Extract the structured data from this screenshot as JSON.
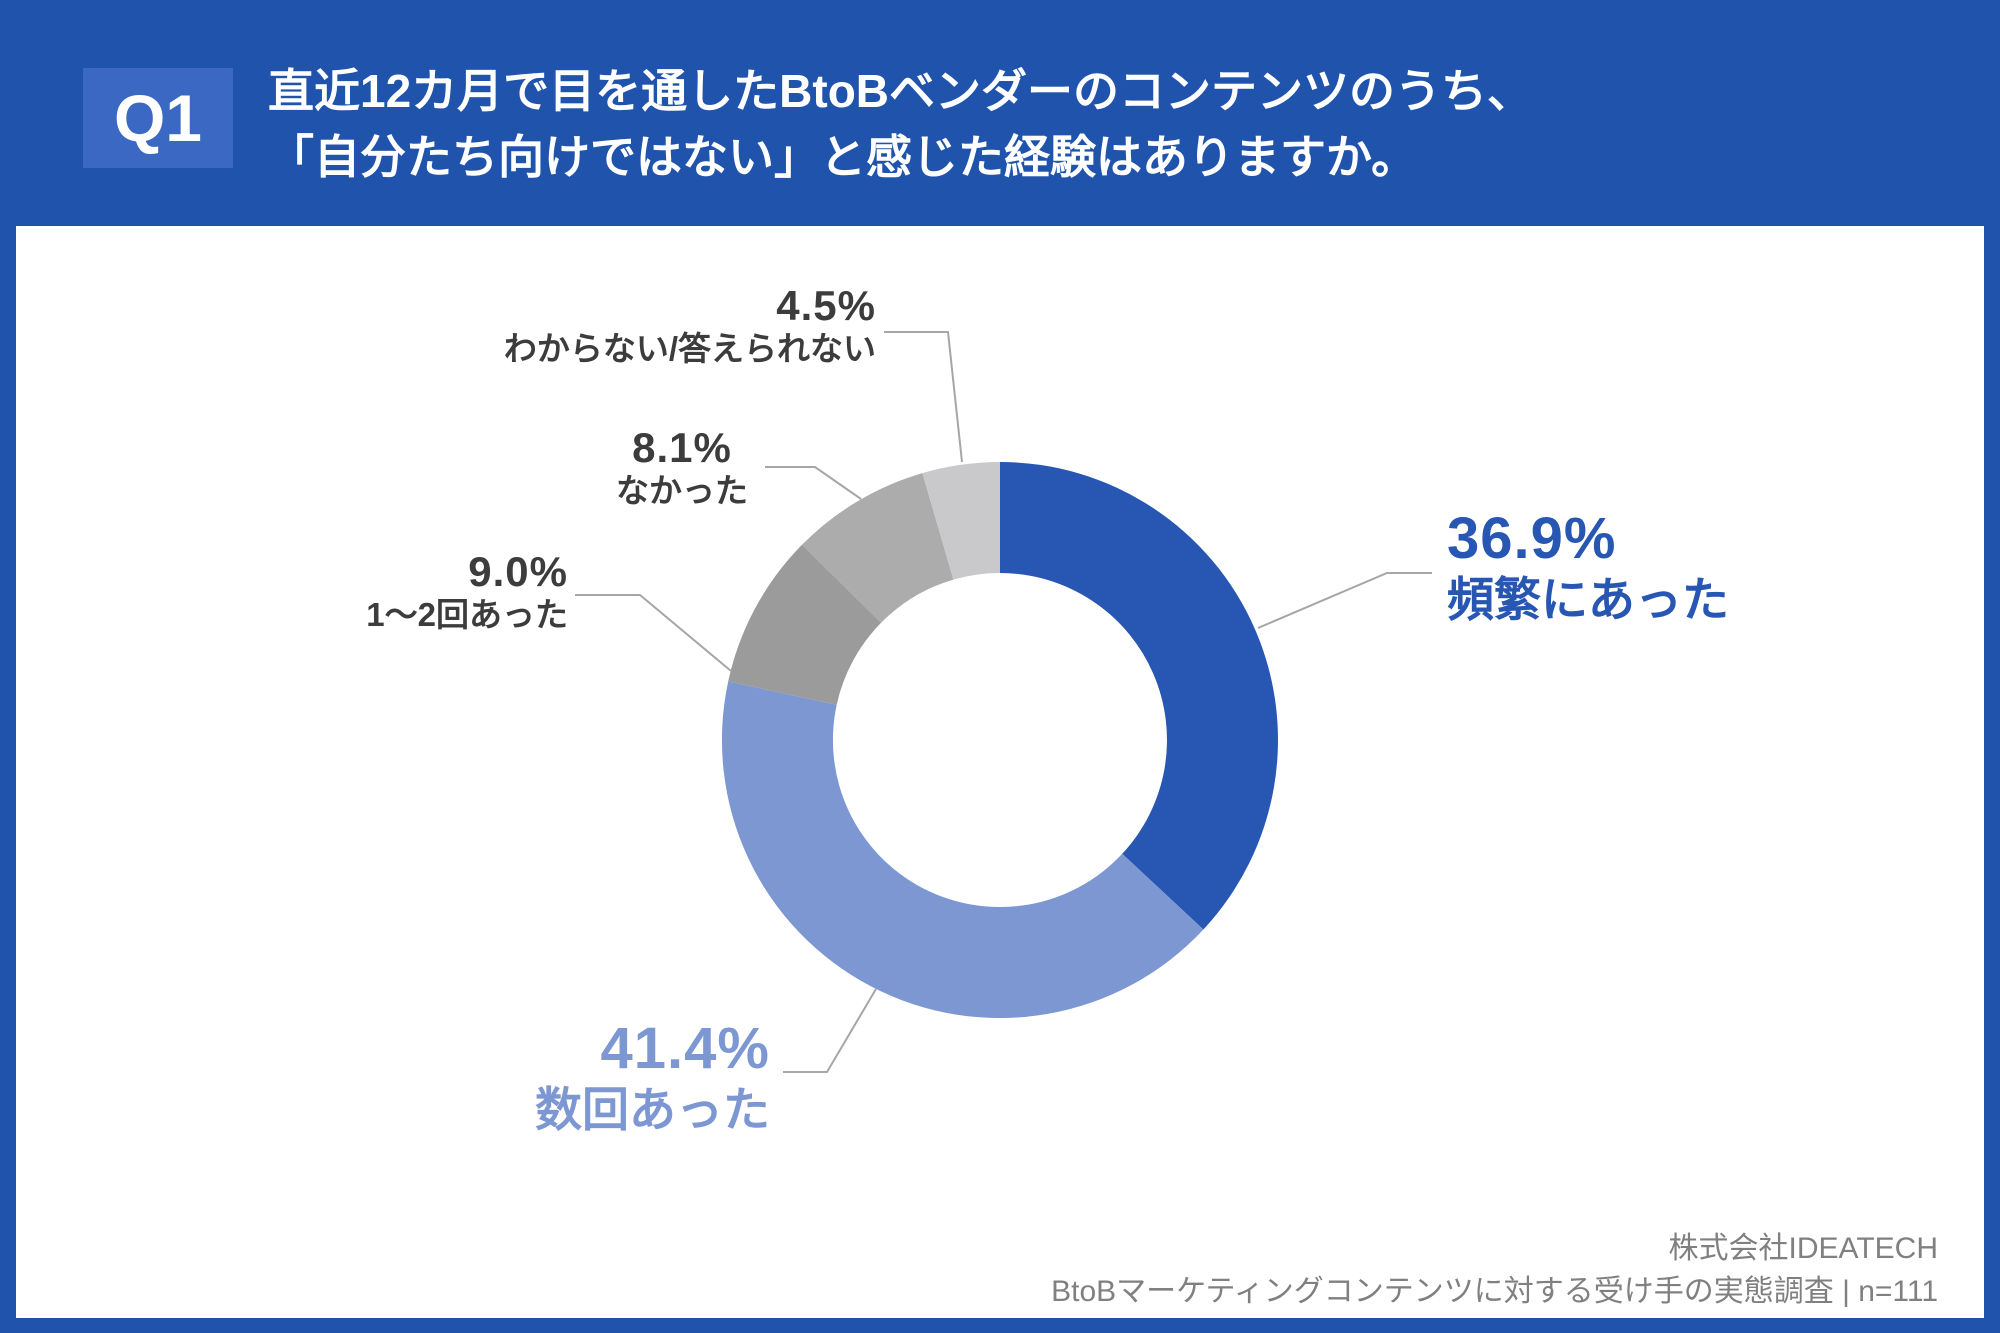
{
  "header": {
    "badge": "Q1",
    "title_line1": "直近12カ月で目を通したBtoBベンダーのコンテンツのうち、",
    "title_line2": "「自分たち向けではない」と感じた経験はありますか。"
  },
  "chart_data": {
    "type": "pie",
    "subtype": "donut",
    "title": "直近12カ月で目を通したBtoBベンダーのコンテンツのうち、「自分たち向けではない」と感じた経験はありますか。",
    "categories": [
      "頻繁にあった",
      "数回あった",
      "1〜2回あった",
      "なかった",
      "わからない/答えられない"
    ],
    "values": [
      36.9,
      41.4,
      9.0,
      8.1,
      4.5
    ],
    "start_angle_deg": 0,
    "direction": "clockwise",
    "inner_radius_ratio": 0.6,
    "legend": "none",
    "segments": [
      {
        "label": "頻繁にあった",
        "value": 36.9,
        "display": "36.9%",
        "color": "#2757B3"
      },
      {
        "label": "数回あった",
        "value": 41.4,
        "display": "41.4%",
        "color": "#7D97D3"
      },
      {
        "label": "1〜2回あった",
        "value": 9.0,
        "display": "9.0%",
        "color": "#9B9B9B"
      },
      {
        "label": "なかった",
        "value": 8.1,
        "display": "8.1%",
        "color": "#ACACAC"
      },
      {
        "label": "わからない/答えられない",
        "value": 4.5,
        "display": "4.5%",
        "color": "#C9C9CB"
      }
    ]
  },
  "footer": {
    "company": "株式会社IDEATECH",
    "source": "BtoBマーケティングコンテンツに対する受け手の実態調査 | n=111"
  },
  "colors": {
    "frame": "#2054AC",
    "badge": "#3A68C2",
    "card": "#FFFFFF",
    "gray_label": "#3C3C3C",
    "leader": "#A6A6A6",
    "footer": "#808080"
  }
}
